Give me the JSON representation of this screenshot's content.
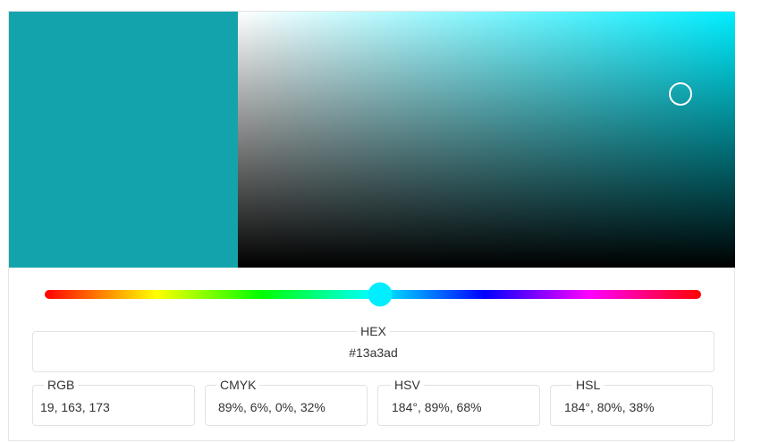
{
  "color": {
    "selected": "#13a3ad",
    "hue_color": "#00eeff",
    "saturation": 0.89,
    "value": 0.68,
    "hue_fraction": 0.511
  },
  "hex": {
    "label": "HEX",
    "value": "#13a3ad"
  },
  "formats": [
    {
      "label": "RGB",
      "value": "19, 163, 173"
    },
    {
      "label": "CMYK",
      "value": "89%, 6%, 0%, 32%"
    },
    {
      "label": "HSV",
      "value": "184°, 89%, 68%"
    },
    {
      "label": "HSL",
      "value": "184°, 80%, 38%"
    }
  ]
}
